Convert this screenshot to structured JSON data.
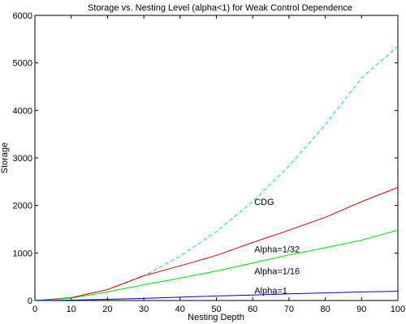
{
  "chart_data": {
    "type": "line",
    "title": "Storage vs. Nesting Level (alpha<1) for Weak Control Dependence",
    "xlabel": "Nesting Depth",
    "ylabel": "Storage",
    "xlim": [
      0,
      100
    ],
    "ylim": [
      0,
      6000
    ],
    "xticks": [
      0,
      10,
      20,
      30,
      40,
      50,
      60,
      70,
      80,
      90,
      100
    ],
    "yticks": [
      0,
      1000,
      2000,
      3000,
      4000,
      5000,
      6000
    ],
    "grid": false,
    "legend": "inline labels",
    "x": [
      0,
      10,
      20,
      30,
      40,
      50,
      60,
      70,
      80,
      90,
      100
    ],
    "series": [
      {
        "name": "CDG",
        "color": "#00ccff",
        "dash": "dashed",
        "values": [
          0,
          60,
          230,
          520,
          930,
          1450,
          2080,
          2830,
          3700,
          4680,
          5350
        ]
      },
      {
        "name": "Alpha=1/32",
        "color": "#e00000",
        "dash": "solid",
        "values": [
          0,
          60,
          230,
          520,
          730,
          950,
          1220,
          1480,
          1750,
          2080,
          2380
        ]
      },
      {
        "name": "Alpha=1/16",
        "color": "#00dd00",
        "dash": "solid",
        "values": [
          0,
          50,
          180,
          330,
          470,
          620,
          790,
          960,
          1110,
          1270,
          1480
        ]
      },
      {
        "name": "Alpha=1",
        "color": "#0000cc",
        "dash": "solid",
        "values": [
          0,
          8,
          25,
          45,
          70,
          95,
          115,
          140,
          160,
          180,
          195
        ]
      }
    ]
  }
}
